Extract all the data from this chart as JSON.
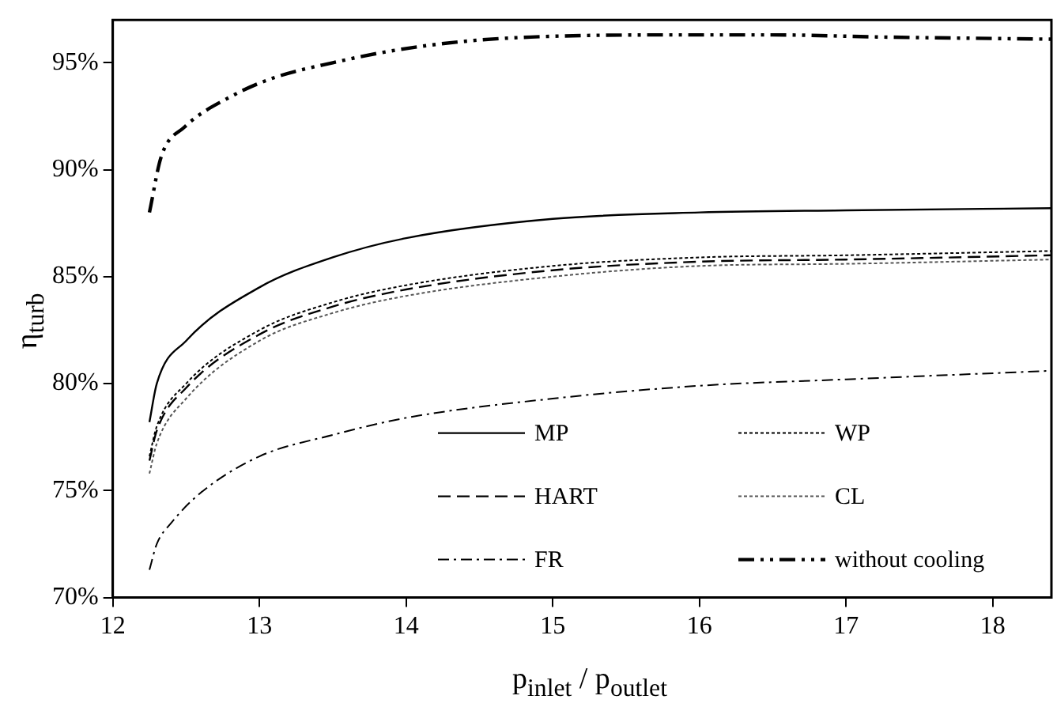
{
  "chart_data": {
    "type": "line",
    "xlabel": "p$_{inlet}$ / p$_{outlet}$",
    "ylabel": "η$_{turb}$",
    "xlim": [
      12,
      18.4
    ],
    "xticks": [
      12,
      13,
      14,
      15,
      16,
      17,
      18
    ],
    "ylim": [
      70,
      97
    ],
    "yticks": [
      {
        "value": 70,
        "label": "70%"
      },
      {
        "value": 75,
        "label": "75%"
      },
      {
        "value": 80,
        "label": "80%"
      },
      {
        "value": 85,
        "label": "85%"
      },
      {
        "value": 90,
        "label": "90%"
      },
      {
        "value": 95,
        "label": "95%"
      }
    ],
    "grid": false,
    "legend": "bottom right",
    "marker": "none",
    "series": [
      {
        "name": "MP",
        "color": "#000000",
        "line_style": "solid",
        "x": [
          12.25,
          12.3,
          12.5,
          13,
          13.5,
          14,
          15,
          16,
          17,
          18.4
        ],
        "values": [
          78.2,
          80.0,
          82.0,
          84.5,
          85.9,
          86.8,
          87.7,
          88.0,
          88.1,
          88.2
        ]
      },
      {
        "name": "WP",
        "color": "#000000",
        "line_style": "dotted",
        "x": [
          12.25,
          12.3,
          12.5,
          13,
          13.5,
          14,
          15,
          16,
          17,
          18.4
        ],
        "values": [
          76.6,
          78.0,
          80.0,
          82.5,
          83.8,
          84.6,
          85.5,
          85.9,
          86.0,
          86.2
        ]
      },
      {
        "name": "HART",
        "color": "#000000",
        "line_style": "dashed",
        "x": [
          12.25,
          12.3,
          12.5,
          13,
          13.5,
          14,
          15,
          16,
          17,
          18.4
        ],
        "values": [
          76.4,
          77.8,
          79.8,
          82.3,
          83.6,
          84.4,
          85.3,
          85.7,
          85.8,
          86.0
        ]
      },
      {
        "name": "CL",
        "color": "#555555",
        "line_style": "dotted",
        "x": [
          12.25,
          12.3,
          12.5,
          13,
          13.5,
          14,
          15,
          16,
          17,
          18.4
        ],
        "values": [
          75.8,
          77.2,
          79.3,
          82.0,
          83.3,
          84.1,
          85.0,
          85.5,
          85.6,
          85.8
        ]
      },
      {
        "name": "FR",
        "color": "#000000",
        "line_style": "dashdot",
        "x": [
          12.25,
          12.3,
          12.4,
          12.6,
          13,
          13.5,
          14,
          15,
          16,
          17,
          18.4
        ],
        "values": [
          71.3,
          72.5,
          73.5,
          74.9,
          76.6,
          77.6,
          78.4,
          79.3,
          79.9,
          80.2,
          80.6
        ]
      },
      {
        "name": "without cooling",
        "color": "#000000",
        "line_style": "dashdotdot",
        "x": [
          12.25,
          12.33,
          12.49,
          12.8,
          13.1,
          13.5,
          13.94,
          14.4,
          14.85,
          15.8,
          16.5,
          17.25,
          18.4
        ],
        "values": [
          88.0,
          90.6,
          92.0,
          93.4,
          94.3,
          95.0,
          95.6,
          96.0,
          96.2,
          96.3,
          96.3,
          96.2,
          96.1
        ]
      }
    ]
  }
}
